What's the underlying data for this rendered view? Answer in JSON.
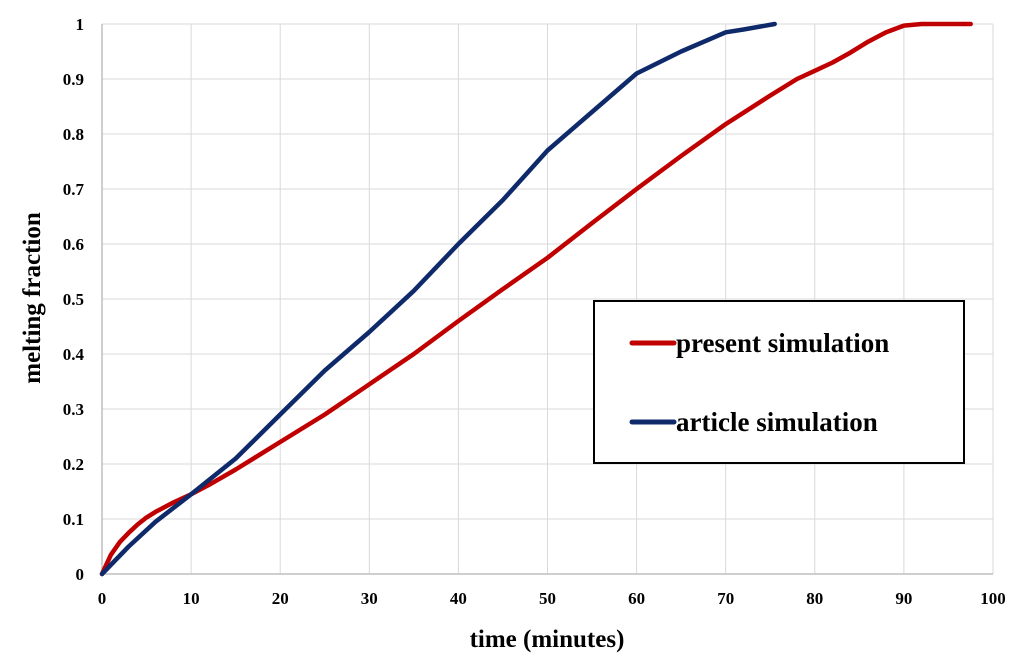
{
  "chart_data": {
    "type": "line",
    "xlabel": "time (minutes)",
    "ylabel": "melting fraction",
    "xlim": [
      0,
      100
    ],
    "ylim": [
      0,
      1
    ],
    "xticks": [
      "0",
      "10",
      "20",
      "30",
      "40",
      "50",
      "60",
      "70",
      "80",
      "90",
      "100"
    ],
    "yticks": [
      "0",
      "0.1",
      "0.2",
      "0.3",
      "0.4",
      "0.5",
      "0.6",
      "0.7",
      "0.8",
      "0.9",
      "1"
    ],
    "grid": true,
    "legend_position": "right",
    "series": [
      {
        "name": "present simulation",
        "color": "#c00000",
        "x": [
          0,
          1,
          2,
          3,
          4,
          5,
          6,
          8,
          10,
          12,
          15,
          20,
          25,
          30,
          35,
          40,
          45,
          50,
          55,
          60,
          65,
          70,
          75,
          78,
          80,
          82,
          84,
          86,
          88,
          90,
          92,
          95,
          97.5
        ],
        "y": [
          0,
          0.035,
          0.058,
          0.075,
          0.09,
          0.103,
          0.113,
          0.13,
          0.145,
          0.162,
          0.19,
          0.24,
          0.29,
          0.345,
          0.4,
          0.46,
          0.518,
          0.575,
          0.638,
          0.7,
          0.76,
          0.818,
          0.87,
          0.9,
          0.915,
          0.93,
          0.948,
          0.968,
          0.985,
          0.997,
          1.0,
          1.0,
          1.0
        ]
      },
      {
        "name": "article simulation",
        "color": "#0f2a6b",
        "x": [
          0,
          3,
          6,
          10,
          15,
          20,
          25,
          30,
          35,
          40,
          45,
          50,
          55,
          60,
          65,
          70,
          72,
          75.5
        ],
        "y": [
          0,
          0.05,
          0.095,
          0.145,
          0.21,
          0.29,
          0.37,
          0.44,
          0.515,
          0.6,
          0.68,
          0.77,
          0.84,
          0.91,
          0.95,
          0.985,
          0.99,
          1.0
        ]
      }
    ]
  }
}
